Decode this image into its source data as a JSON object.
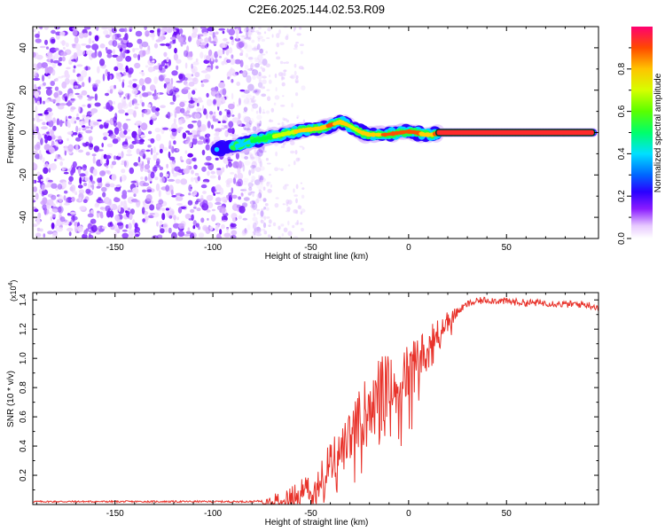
{
  "title": "C2E6.2025.144.02.53.R09",
  "colors": {
    "background": "#ffffff",
    "frame": "#000000",
    "snr_line": "#e8322a",
    "track_core": "#ff2a2a"
  },
  "chart_data": [
    {
      "type": "heatmap",
      "xlabel": "Height of straight line (km)",
      "ylabel": "Frequency (Hz)",
      "xlim": [
        -192,
        97
      ],
      "ylim": [
        -50,
        50
      ],
      "xticks": [
        -150,
        -100,
        -50,
        0,
        50
      ],
      "yticks": [
        -40,
        -20,
        0,
        20,
        40
      ],
      "colorbar": {
        "label": "Normalized spectral amplitude",
        "range": [
          0.0,
          1.0
        ],
        "ticks": [
          "0.0",
          "0.2",
          "0.4",
          "0.6",
          "0.8"
        ],
        "colormap": [
          "#ffffff",
          "#b36bff",
          "#6a00ff",
          "#0000ff",
          "#00d6ff",
          "#00ff40",
          "#c8ff00",
          "#ffd000",
          "#ff5000",
          "#ff0066"
        ]
      },
      "noise_region": {
        "x_range": [
          -192,
          -78
        ],
        "dominant_amplitude": 0.15
      },
      "track": {
        "x": [
          -98,
          -92,
          -86,
          -80,
          -75,
          -70,
          -65,
          -60,
          -55,
          -50,
          -45,
          -40,
          -35,
          -32,
          -28,
          -24,
          -20,
          -16,
          -12,
          -8,
          -4,
          0,
          4,
          8,
          12,
          16,
          30,
          50,
          70,
          95
        ],
        "y": [
          -8,
          -7,
          -6,
          -4,
          -3,
          -2,
          -1,
          0,
          1,
          1.5,
          2,
          3.5,
          5,
          4,
          2,
          0,
          -1,
          -1,
          -1,
          -0.5,
          0,
          0.5,
          0,
          -1,
          -1,
          0,
          0,
          0,
          0,
          0
        ],
        "amplitude": [
          0.4,
          0.35,
          0.45,
          0.5,
          0.55,
          0.6,
          0.65,
          0.7,
          0.75,
          0.75,
          0.8,
          0.85,
          0.8,
          0.75,
          0.7,
          0.75,
          0.8,
          0.8,
          0.85,
          0.85,
          0.85,
          0.9,
          0.85,
          0.8,
          0.8,
          0.95,
          1.0,
          1.0,
          1.0,
          1.0
        ]
      }
    },
    {
      "type": "line",
      "xlabel": "Height of straight line (km)",
      "ylabel": "SNR (10 * v/v)",
      "y_multiplier": "(x10^4)",
      "xlim": [
        -192,
        97
      ],
      "ylim": [
        0,
        1.45
      ],
      "xticks": [
        -150,
        -100,
        -50,
        0,
        50
      ],
      "yticks": [
        0.2,
        0.4,
        0.6,
        0.8,
        1.0,
        1.2,
        1.4
      ],
      "series": [
        {
          "x": [
            -192,
            -150,
            -100,
            -80,
            -70,
            -60,
            -55,
            -50,
            -45,
            -40,
            -35,
            -30,
            -25,
            -20,
            -15,
            -10,
            -5,
            0,
            5,
            10,
            15,
            20,
            25,
            30,
            35,
            40,
            50,
            60,
            70,
            80,
            90,
            97
          ],
          "values": [
            0.02,
            0.02,
            0.02,
            0.02,
            0.03,
            0.05,
            0.1,
            0.15,
            0.2,
            0.3,
            0.35,
            0.45,
            0.6,
            0.75,
            0.8,
            0.82,
            0.85,
            0.9,
            1.0,
            1.1,
            1.18,
            1.25,
            1.32,
            1.37,
            1.39,
            1.4,
            1.39,
            1.38,
            1.38,
            1.37,
            1.37,
            1.35
          ]
        }
      ]
    }
  ]
}
